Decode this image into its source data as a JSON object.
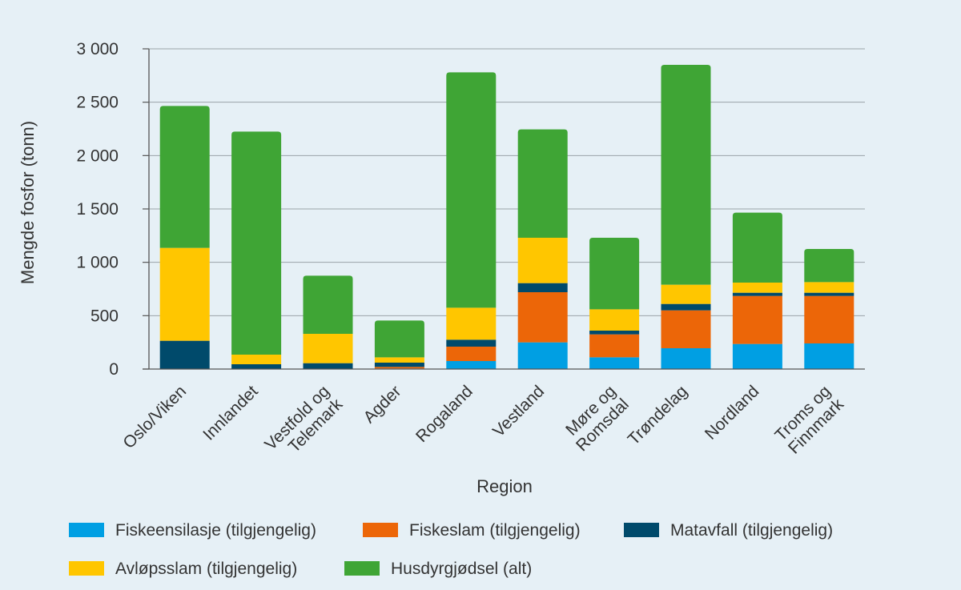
{
  "chart_data": {
    "type": "bar",
    "stacked": true,
    "title": "",
    "xlabel": "Region",
    "ylabel": "Mengde fosfor (tonn)",
    "ylim": [
      0,
      3000
    ],
    "yticks": [
      0,
      500,
      1000,
      1500,
      2000,
      2500,
      3000
    ],
    "ytick_labels": [
      "0",
      "500",
      "1 000",
      "1 500",
      "2 000",
      "2 500",
      "3 000"
    ],
    "grid": true,
    "legend_position": "bottom",
    "categories": [
      {
        "lines": [
          "Oslo/Viken"
        ]
      },
      {
        "lines": [
          "Innlandet"
        ]
      },
      {
        "lines": [
          "Vestfold og",
          "Telemark"
        ]
      },
      {
        "lines": [
          "Agder"
        ]
      },
      {
        "lines": [
          "Rogaland"
        ]
      },
      {
        "lines": [
          "Vestland"
        ]
      },
      {
        "lines": [
          "Møre og",
          "Romsdal"
        ]
      },
      {
        "lines": [
          "Trøndelag"
        ]
      },
      {
        "lines": [
          "Nordland"
        ]
      },
      {
        "lines": [
          "Troms og",
          "Finnmark"
        ]
      }
    ],
    "series": [
      {
        "name": "Fiskeensilasje (tilgjengelig)",
        "color": "#009fe3",
        "values": [
          0,
          0,
          0,
          5,
          75,
          250,
          110,
          195,
          235,
          240
        ]
      },
      {
        "name": "Fiskeslam (tilgjengelig)",
        "color": "#ec6608",
        "values": [
          0,
          0,
          0,
          15,
          135,
          470,
          215,
          355,
          450,
          445
        ]
      },
      {
        "name": "Matavfall (tilgjengelig)",
        "color": "#004a6b",
        "values": [
          265,
          45,
          55,
          40,
          65,
          85,
          35,
          60,
          30,
          30
        ]
      },
      {
        "name": "Avløpsslam (tilgjengelig)",
        "color": "#ffc600",
        "values": [
          870,
          90,
          275,
          50,
          300,
          425,
          200,
          180,
          95,
          100
        ]
      },
      {
        "name": "Husdyrgjødsel (alt)",
        "color": "#3fa535",
        "values": [
          1330,
          2090,
          545,
          345,
          2205,
          1015,
          670,
          2060,
          655,
          310
        ]
      }
    ]
  }
}
